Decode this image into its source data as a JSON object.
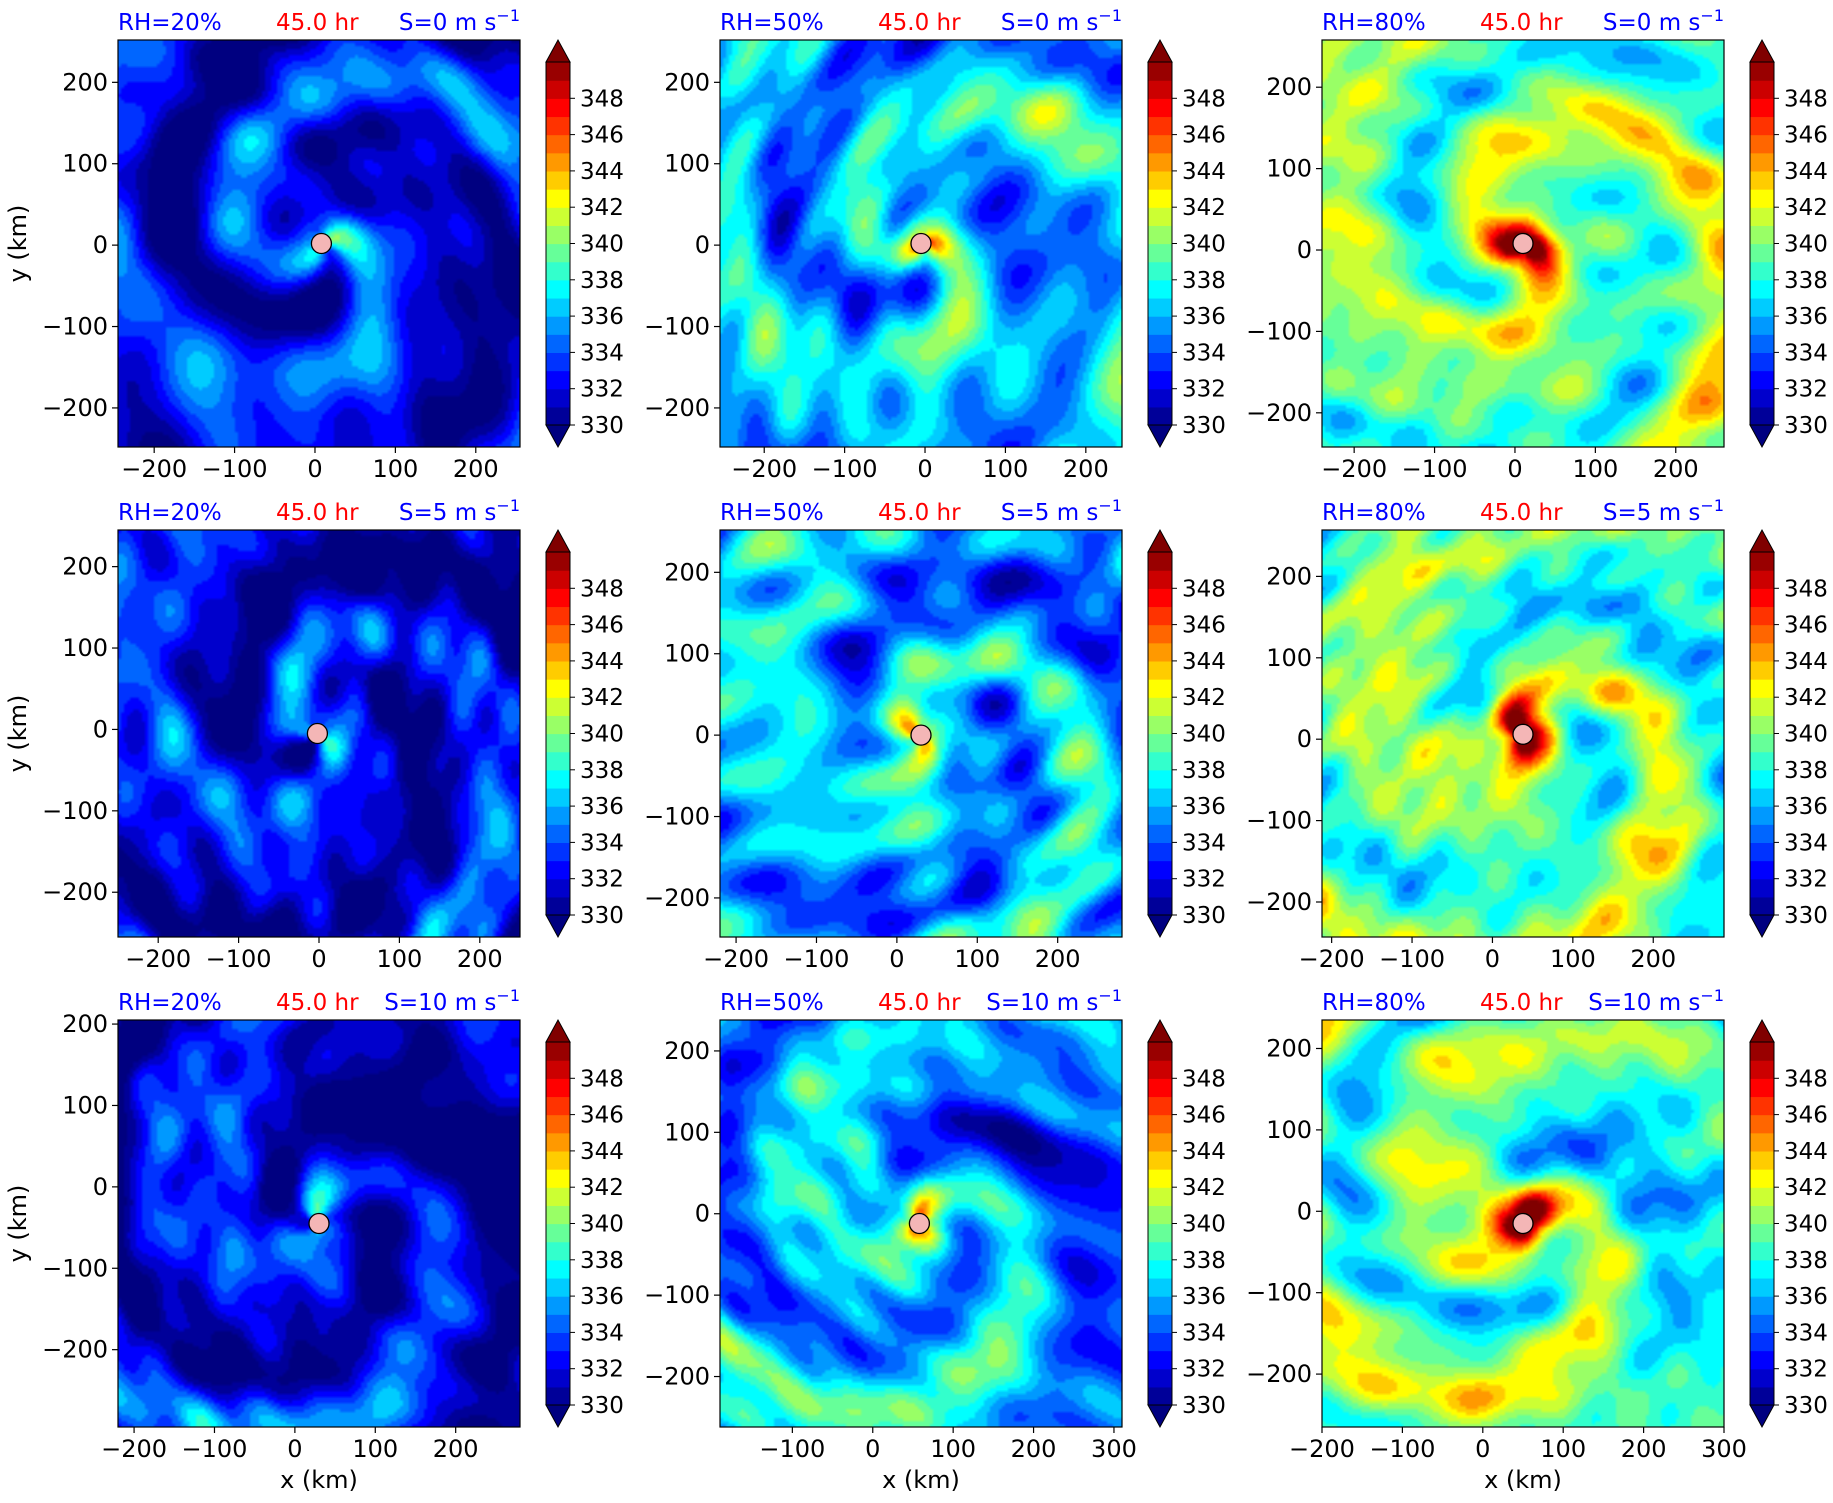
{
  "figure": {
    "colormap": "jet",
    "colorbar_levels": [
      330,
      332,
      334,
      336,
      338,
      340,
      342,
      344,
      346,
      348
    ],
    "colorbar_extend": "both",
    "center_marker_color": "#f4b6b6",
    "time_label_color": "#ff0000",
    "title_color": "#0000ff",
    "xlabel": "x (km)",
    "ylabel": "y (km)"
  },
  "chart_data": [
    {
      "type": "heatmap",
      "rh_label": "RH=20%",
      "time_label": "45.0 hr",
      "shear_label": "S=0 m s",
      "shear_exp": "−1",
      "xticks": [
        "−200",
        "−100",
        "0",
        "100",
        "200"
      ],
      "xtick_values": [
        -200,
        -100,
        0,
        100,
        200
      ],
      "yticks": [
        "−200",
        "−100",
        "0",
        "100",
        "200"
      ],
      "ytick_values": [
        -200,
        -100,
        0,
        100,
        200
      ],
      "xlim": [
        -245,
        255
      ],
      "ylim": [
        -248,
        252
      ],
      "center": [
        8,
        2
      ],
      "xlabel": "",
      "ylabel": "y (km)"
    },
    {
      "type": "heatmap",
      "rh_label": "RH=50%",
      "time_label": "45.0 hr",
      "shear_label": "S=0 m s",
      "shear_exp": "−1",
      "xticks": [
        "−200",
        "−100",
        "0",
        "100",
        "200"
      ],
      "xtick_values": [
        -200,
        -100,
        0,
        100,
        200
      ],
      "yticks": [
        "−200",
        "−100",
        "0",
        "100",
        "200"
      ],
      "ytick_values": [
        -200,
        -100,
        0,
        100,
        200
      ],
      "xlim": [
        -255,
        245
      ],
      "ylim": [
        -248,
        252
      ],
      "center": [
        -5,
        2
      ],
      "xlabel": "",
      "ylabel": ""
    },
    {
      "type": "heatmap",
      "rh_label": "RH=80%",
      "time_label": "45.0 hr",
      "shear_label": "S=0 m s",
      "shear_exp": "−1",
      "xticks": [
        "−200",
        "−100",
        "0",
        "100",
        "200"
      ],
      "xtick_values": [
        -200,
        -100,
        0,
        100,
        200
      ],
      "yticks": [
        "−200",
        "−100",
        "0",
        "100",
        "200"
      ],
      "ytick_values": [
        -200,
        -100,
        0,
        100,
        200
      ],
      "xlim": [
        -240,
        260
      ],
      "ylim": [
        -242,
        258
      ],
      "center": [
        10,
        8
      ],
      "xlabel": "",
      "ylabel": ""
    },
    {
      "type": "heatmap",
      "rh_label": "RH=20%",
      "time_label": "45.0 hr",
      "shear_label": "S=5 m s",
      "shear_exp": "−1",
      "xticks": [
        "−200",
        "−100",
        "0",
        "100",
        "200"
      ],
      "xtick_values": [
        -200,
        -100,
        0,
        100,
        200
      ],
      "yticks": [
        "−200",
        "−100",
        "0",
        "100",
        "200"
      ],
      "ytick_values": [
        -200,
        -100,
        0,
        100,
        200
      ],
      "xlim": [
        -250,
        250
      ],
      "ylim": [
        -255,
        245
      ],
      "center": [
        -2,
        -5
      ],
      "xlabel": "",
      "ylabel": "y (km)"
    },
    {
      "type": "heatmap",
      "rh_label": "RH=50%",
      "time_label": "45.0 hr",
      "shear_label": "S=5 m s",
      "shear_exp": "−1",
      "xticks": [
        "−200",
        "−100",
        "0",
        "100",
        "200"
      ],
      "xtick_values": [
        -200,
        -100,
        0,
        100,
        200
      ],
      "yticks": [
        "−200",
        "−100",
        "0",
        "100",
        "200"
      ],
      "ytick_values": [
        -200,
        -100,
        0,
        100,
        200
      ],
      "xlim": [
        -220,
        280
      ],
      "ylim": [
        -248,
        252
      ],
      "center": [
        30,
        0
      ],
      "xlabel": "",
      "ylabel": ""
    },
    {
      "type": "heatmap",
      "rh_label": "RH=80%",
      "time_label": "45.0 hr",
      "shear_label": "S=5 m s",
      "shear_exp": "−1",
      "xticks": [
        "−200",
        "−100",
        "0",
        "100",
        "200"
      ],
      "xtick_values": [
        -200,
        -100,
        0,
        100,
        200
      ],
      "yticks": [
        "−200",
        "−100",
        "0",
        "100",
        "200"
      ],
      "ytick_values": [
        -200,
        -100,
        0,
        100,
        200
      ],
      "xlim": [
        -212,
        288
      ],
      "ylim": [
        -243,
        257
      ],
      "center": [
        38,
        6
      ],
      "xlabel": "",
      "ylabel": ""
    },
    {
      "type": "heatmap",
      "rh_label": "RH=20%",
      "time_label": "45.0 hr",
      "shear_label": "S=10 m s",
      "shear_exp": "−1",
      "xticks": [
        "−200",
        "−100",
        "0",
        "100",
        "200"
      ],
      "xtick_values": [
        -200,
        -100,
        0,
        100,
        200
      ],
      "yticks": [
        "−200",
        "−100",
        "0",
        "100",
        "200"
      ],
      "ytick_values": [
        -200,
        -100,
        0,
        100,
        200
      ],
      "xlim": [
        -220,
        280
      ],
      "ylim": [
        -295,
        205
      ],
      "center": [
        30,
        -45
      ],
      "xlabel": "x (km)",
      "ylabel": "y (km)"
    },
    {
      "type": "heatmap",
      "rh_label": "RH=50%",
      "time_label": "45.0 hr",
      "shear_label": "S=10 m s",
      "shear_exp": "−1",
      "xticks": [
        "−100",
        "0",
        "100",
        "200",
        "300"
      ],
      "xtick_values": [
        -100,
        0,
        100,
        200,
        300
      ],
      "yticks": [
        "−200",
        "−100",
        "0",
        "100",
        "200"
      ],
      "ytick_values": [
        -200,
        -100,
        0,
        100,
        200
      ],
      "xlim": [
        -190,
        310
      ],
      "ylim": [
        -262,
        238
      ],
      "center": [
        58,
        -12
      ],
      "xlabel": "x (km)",
      "ylabel": ""
    },
    {
      "type": "heatmap",
      "rh_label": "RH=80%",
      "time_label": "45.0 hr",
      "shear_label": "S=10 m s",
      "shear_exp": "−1",
      "xticks": [
        "−200",
        "−100",
        "0",
        "100",
        "200",
        "300"
      ],
      "xtick_values": [
        -200,
        -100,
        0,
        100,
        200,
        300
      ],
      "yticks": [
        "−200",
        "−100",
        "0",
        "100",
        "200"
      ],
      "ytick_values": [
        -200,
        -100,
        0,
        100,
        200
      ],
      "xlim": [
        -200,
        300
      ],
      "ylim": [
        -265,
        235
      ],
      "center": [
        50,
        -15
      ],
      "xlabel": "x (km)",
      "ylabel": ""
    }
  ]
}
